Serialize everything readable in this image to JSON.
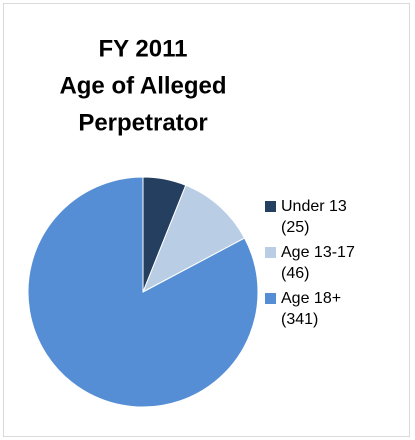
{
  "chart_data": {
    "type": "pie",
    "title": [
      "FY 2011",
      "Age of Alleged",
      "Perpetrator"
    ],
    "categories": [
      "Under 13",
      "Age 13-17",
      "Age 18+"
    ],
    "values": [
      25,
      46,
      341
    ],
    "value_labels": [
      "(25)",
      "(46)",
      "(341)"
    ],
    "colors": [
      "#243f60",
      "#b9cde5",
      "#558ed5"
    ],
    "legend": "right"
  }
}
